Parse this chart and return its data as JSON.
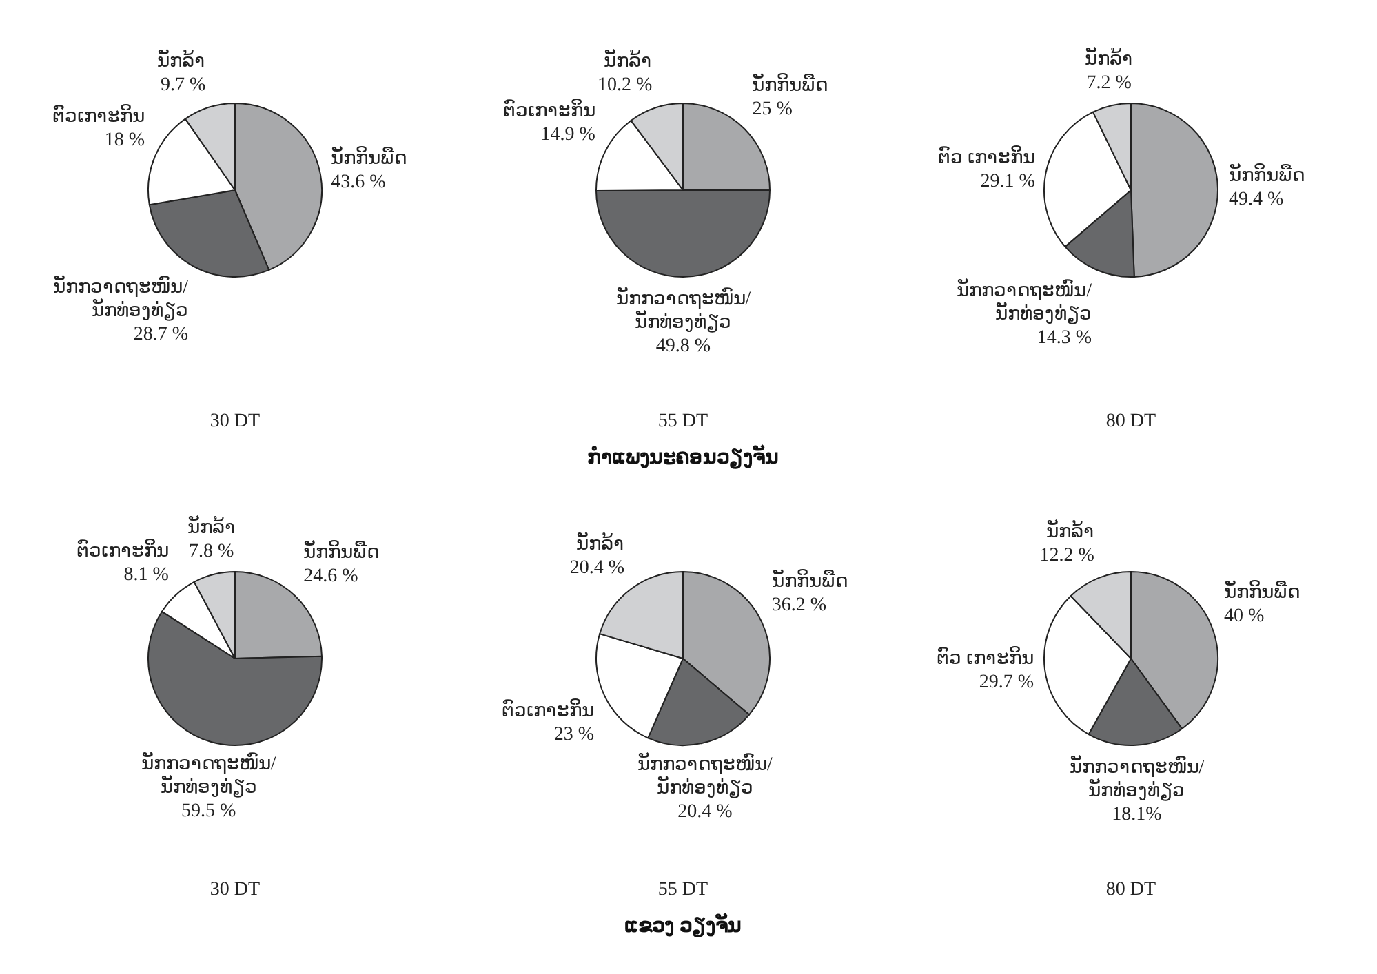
{
  "chart_data": [
    {
      "type": "pie",
      "title": "30 DT",
      "categories": [
        "ນັກກິນພືດ",
        "ນັກກວາດຖະໜົນ/ນັກທ່ອງທ່ຽວ",
        "ຕົວເກາະກິນ",
        "ນັກລ້າ"
      ],
      "values": [
        43.6,
        28.7,
        18,
        9.7
      ],
      "value_labels": [
        "43.6 %",
        "28.7 %",
        "18 %",
        "9.7 %"
      ],
      "colors": [
        "#a8a9ab",
        "#67686a",
        "#ffffff",
        "#d0d1d3"
      ]
    },
    {
      "type": "pie",
      "title": "55 DT",
      "subtitle": "ກຳແພງນະຄອນວຽງຈັນ",
      "categories": [
        "ນັກກິນພືດ",
        "ນັກກວາດຖະໜົນ/ນັກທ່ອງທ່ຽວ",
        "ຕົວເກາະກິນ",
        "ນັກລ້າ"
      ],
      "values": [
        25,
        49.8,
        14.9,
        10.2
      ],
      "value_labels": [
        "25 %",
        "49.8 %",
        "14.9 %",
        "10.2 %"
      ],
      "colors": [
        "#a8a9ab",
        "#67686a",
        "#ffffff",
        "#d0d1d3"
      ]
    },
    {
      "type": "pie",
      "title": "80 DT",
      "categories": [
        "ນັກກິນພືດ",
        "ນັກກວາດຖະໜົນ/ນັກທ່ອງທ່ຽວ",
        "ຕົວ ເກາະກິນ",
        "ນັກລ້າ"
      ],
      "values": [
        49.4,
        14.3,
        29.1,
        7.2
      ],
      "value_labels": [
        "49.4 %",
        "14.3 %",
        "29.1 %",
        "7.2 %"
      ],
      "colors": [
        "#a8a9ab",
        "#67686a",
        "#ffffff",
        "#d0d1d3"
      ]
    },
    {
      "type": "pie",
      "title": "30 DT",
      "categories": [
        "ນັກກິນພືດ",
        "ນັກກວາດຖະໜົນ/ນັກທ່ອງທ່ຽວ",
        "ຕົວເກາະກິນ",
        "ນັກລ້າ"
      ],
      "values": [
        24.6,
        59.5,
        8.1,
        7.8
      ],
      "value_labels": [
        "24.6 %",
        "59.5 %",
        "8.1 %",
        "7.8 %"
      ],
      "colors": [
        "#a8a9ab",
        "#67686a",
        "#ffffff",
        "#d0d1d3"
      ]
    },
    {
      "type": "pie",
      "title": "55 DT",
      "subtitle": "ແຂວງ ວຽງຈັນ",
      "categories": [
        "ນັກກິນພືດ",
        "ນັກກວາດຖະໜົນ/ນັກທ່ອງທ່ຽວ",
        "ຕົວເກາະກິນ",
        "ນັກລ້າ"
      ],
      "values": [
        36.2,
        20.4,
        23,
        20.4
      ],
      "value_labels": [
        "36.2 %",
        "20.4 %",
        "23 %",
        "20.4 %"
      ],
      "colors": [
        "#a8a9ab",
        "#67686a",
        "#ffffff",
        "#d0d1d3"
      ]
    },
    {
      "type": "pie",
      "title": "80 DT",
      "categories": [
        "ນັກກິນພືດ",
        "ນັກກວາດຖະໜົນ/ນັກທ່ອງທ່ຽວ",
        "ຕົວ ເກາະກິນ",
        "ນັກລ້າ"
      ],
      "values": [
        40,
        18.1,
        29.7,
        12.2
      ],
      "value_labels": [
        "40 %",
        "18.1%",
        "29.7 %",
        "12.2 %"
      ],
      "colors": [
        "#a8a9ab",
        "#67686a",
        "#ffffff",
        "#d0d1d3"
      ]
    }
  ]
}
